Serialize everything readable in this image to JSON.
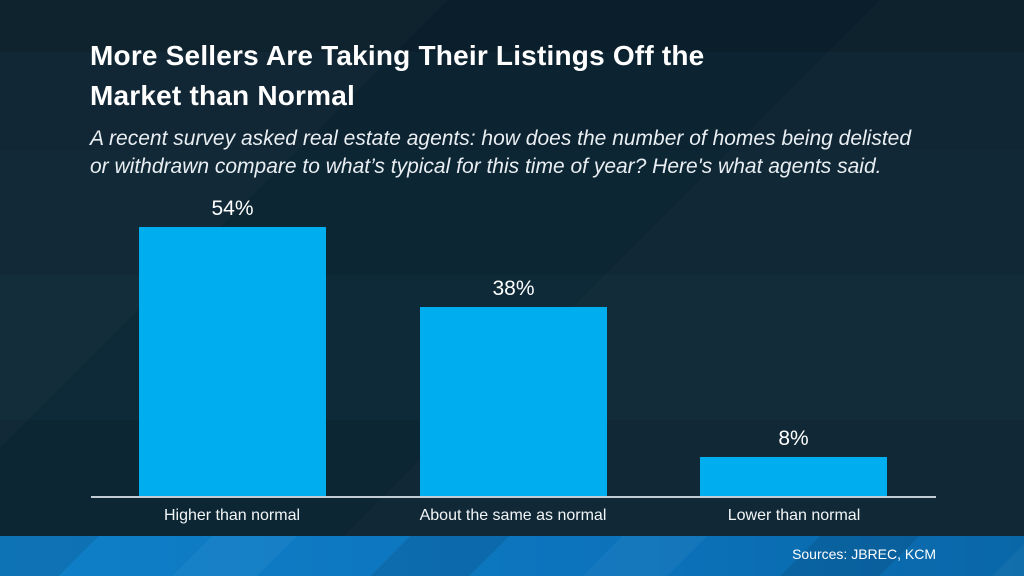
{
  "slide": {
    "title": "More Sellers Are Taking Their Listings Off the\nMarket than Normal",
    "subtitle": "A recent survey asked real estate agents: how does the number of homes being delisted\nor withdrawn compare to what’s typical for this time of year? Here's what agents said.",
    "source_label": "Sources: JBREC, KCM"
  },
  "chart_data": {
    "type": "bar",
    "categories": [
      "Higher than normal",
      "About the same as normal",
      "Lower than normal"
    ],
    "values": [
      54,
      38,
      8
    ],
    "data_labels": [
      "54%",
      "38%",
      "8%"
    ],
    "unit": "%",
    "ylim": [
      0,
      57
    ],
    "grid": false,
    "legend": false,
    "bar_color": "#00aeef",
    "axis_line_color": "#c3ccd2"
  },
  "colors": {
    "background": "#0c2331",
    "footer_left": "#0f80c9",
    "footer_right": "#0967a8",
    "title_text": "#ffffff",
    "subtitle_text": "#e9eef2"
  }
}
